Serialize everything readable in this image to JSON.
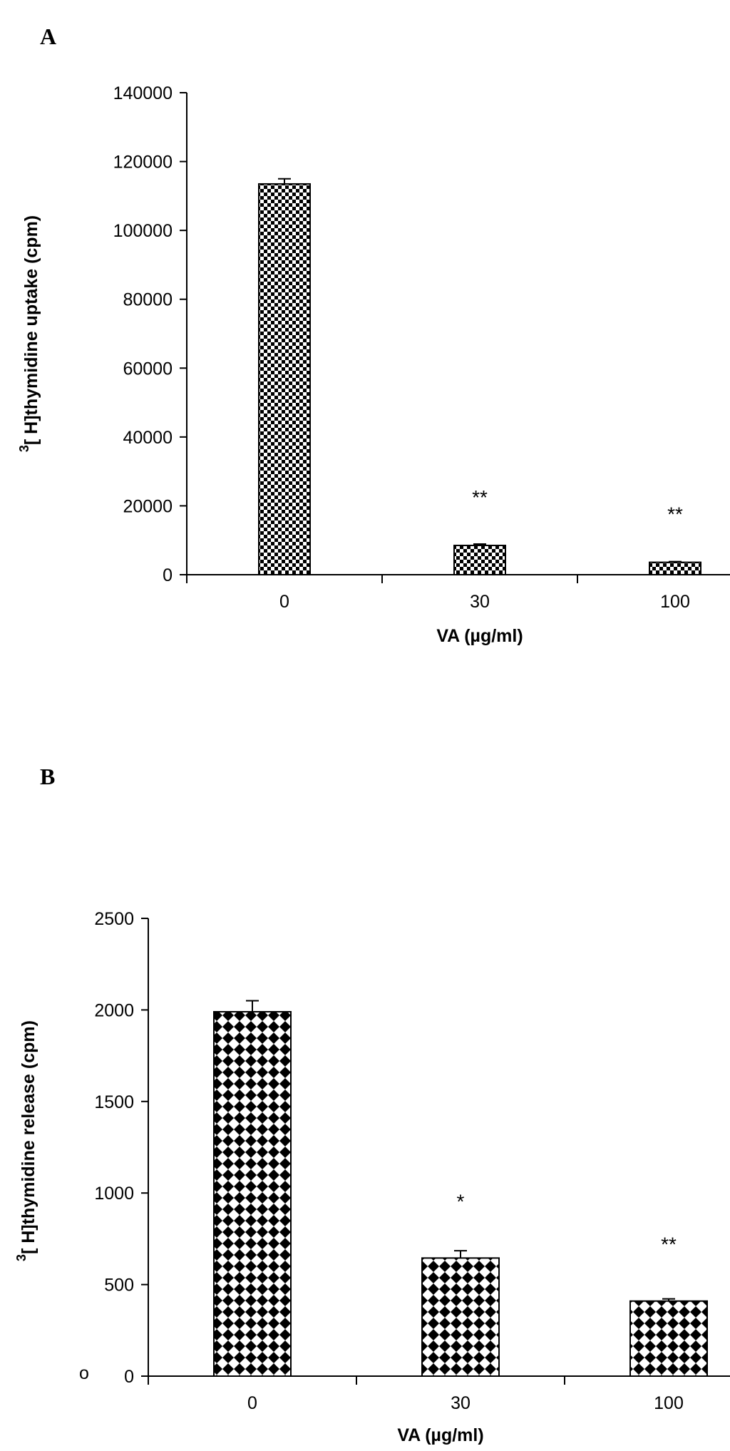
{
  "chart_data": [
    {
      "type": "bar",
      "panel_label": "A",
      "categories": [
        "0",
        "30",
        "100"
      ],
      "values": [
        113500,
        8500,
        3600
      ],
      "errors": [
        1500,
        400,
        200
      ],
      "annotations": [
        "",
        "**",
        "**"
      ],
      "title": "",
      "xlabel": "VA (µg/ml)",
      "ylabel_sup": "3",
      "ylabel": "[ H]thymidine uptake (cpm)",
      "ylim": [
        0,
        140000
      ],
      "yticks": [
        0,
        20000,
        40000,
        60000,
        80000,
        100000,
        120000,
        140000
      ],
      "grid": false,
      "legend": "none",
      "pattern": "checkerboard"
    },
    {
      "type": "bar",
      "panel_label": "B",
      "categories": [
        "0",
        "30",
        "100"
      ],
      "values": [
        1990,
        645,
        410
      ],
      "errors": [
        60,
        40,
        12
      ],
      "annotations": [
        "",
        "*",
        "**"
      ],
      "title": "",
      "xlabel": "VA (µg/ml)",
      "ylabel_sup": "3",
      "ylabel": "[ H]thymidine release (cpm)",
      "ylim": [
        0,
        2500
      ],
      "yticks": [
        0,
        500,
        1000,
        1500,
        2000,
        2500
      ],
      "grid": false,
      "legend": "none",
      "pattern": "diamond",
      "stray_mark": "o"
    }
  ]
}
